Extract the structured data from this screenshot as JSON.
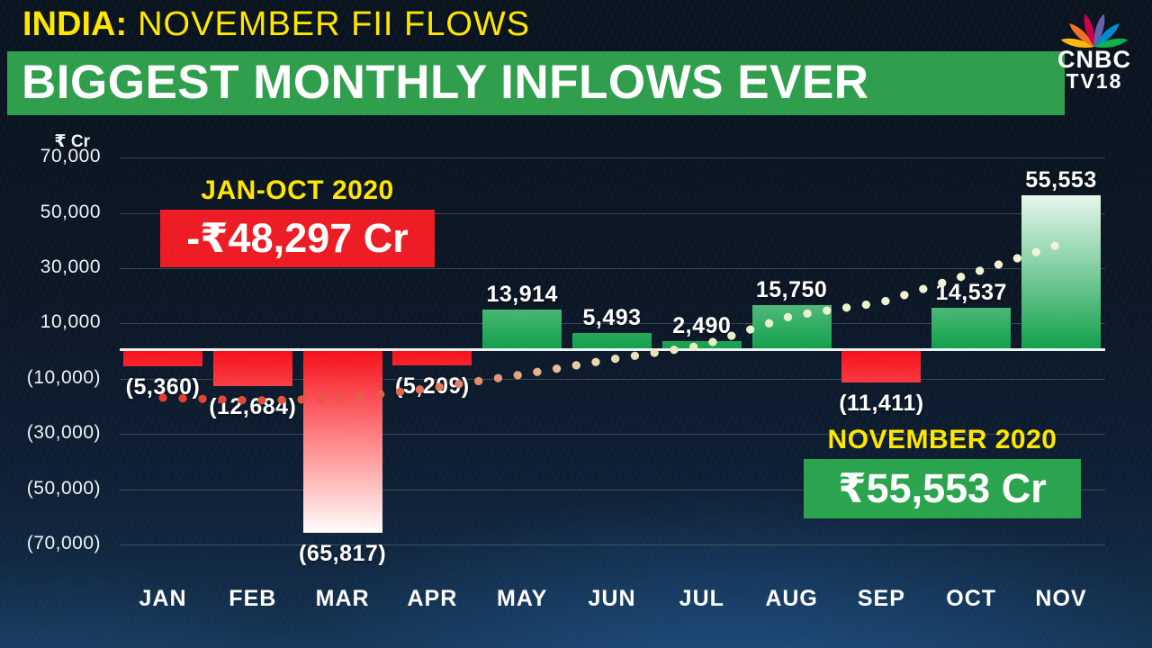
{
  "header": {
    "kicker": {
      "prefix": "INDIA:",
      "rest": "NOVEMBER FII FLOWS"
    },
    "banner": "BIGGEST MONTHLY INFLOWS EVER",
    "logo": {
      "line1": "CNBC",
      "line2": "TV18"
    }
  },
  "colors": {
    "accent_yellow": "#ffe600",
    "banner_green": "#2f9e4c",
    "box_red": "#ed1c24",
    "box_green": "#2aa44d",
    "bar_positive": "#12a04b",
    "bar_negative": "#f6101b",
    "trend_start": "#e63b2b",
    "trend_end": "#f0f4d6"
  },
  "chart_data": {
    "type": "bar",
    "title": "BIGGEST MONTHLY INFLOWS EVER",
    "subtitle": "INDIA: NOVEMBER FII FLOWS",
    "unit_label": "₹ Cr",
    "categories": [
      "JAN",
      "FEB",
      "MAR",
      "APR",
      "MAY",
      "JUN",
      "JUL",
      "AUG",
      "SEP",
      "OCT",
      "NOV"
    ],
    "values": [
      -5360,
      -12684,
      -65817,
      -5209,
      13914,
      5493,
      2490,
      15750,
      -11411,
      14537,
      55553
    ],
    "value_labels": [
      "(5,360)",
      "(12,684)",
      "(65,817)",
      "(5,209)",
      "13,914",
      "5,493",
      "2,490",
      "15,750",
      "(11,411)",
      "14,537",
      "55,553"
    ],
    "y_ticks": [
      70000,
      50000,
      30000,
      10000,
      -10000,
      -30000,
      -50000,
      -70000
    ],
    "y_tick_labels": [
      "70,000",
      "50,000",
      "30,000",
      "10,000",
      "(10,000)",
      "(30,000)",
      "(50,000)",
      "(70,000)"
    ],
    "ylim": [
      -75000,
      75000
    ],
    "grid": true,
    "legend": false,
    "trend_dotted_line_values": [
      -16900,
      -17900,
      -17300,
      -13400,
      -8500,
      -3000,
      1950,
      12700,
      17600,
      28000,
      38800
    ],
    "annotations": [
      {
        "label": "JAN-OCT 2020",
        "value": "-₹48,297 Cr"
      },
      {
        "label": "NOVEMBER 2020",
        "value": "₹55,553 Cr"
      }
    ]
  }
}
